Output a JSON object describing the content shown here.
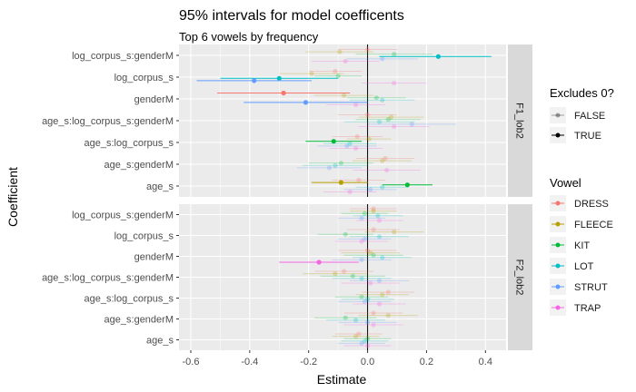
{
  "chart_data": {
    "type": "scatter",
    "title": "95% intervals for model coefficents",
    "subtitle": "Top 6 vowels by frequency",
    "xlabel": "Estimate",
    "ylabel": "Coefficient",
    "xlim": [
      -0.64,
      0.47
    ],
    "x_ticks": [
      "-0.6",
      "-0.4",
      "-0.2",
      "0.0",
      "0.2",
      "0.4"
    ],
    "x_tick_values": [
      -0.6,
      -0.4,
      -0.2,
      0.0,
      0.2,
      0.4
    ],
    "categories": [
      "log_corpus_s:genderM",
      "log_corpus_s",
      "genderM",
      "age_s:log_corpus_s:genderM",
      "age_s:log_corpus_s",
      "age_s:genderM",
      "age_s"
    ],
    "facets": [
      "F1_lob2",
      "F2_lob2"
    ],
    "vowels": [
      "DRESS",
      "FLEECE",
      "KIT",
      "LOT",
      "STRUT",
      "TRAP"
    ],
    "colors": {
      "DRESS": "#F8766D",
      "FLEECE": "#B79F00",
      "KIT": "#00BA38",
      "LOT": "#00BFC4",
      "STRUT": "#619CFF",
      "TRAP": "#F564E3",
      "panel_bg": "#EBEBEB",
      "grid": "#FFFFFF",
      "strip_bg": "#D9D9D9",
      "zero_line": "#000000"
    },
    "legend": {
      "position": "right",
      "excludes_title": "Excludes 0?",
      "excludes_items": [
        "FALSE",
        "TRUE"
      ],
      "vowel_title": "Vowel"
    },
    "grid": true,
    "panels": [
      {
        "facet": "F1_lob2",
        "points": [
          {
            "coef": "log_corpus_s:genderM",
            "vowel": "DRESS",
            "est": 0.0,
            "lo": -0.1,
            "hi": 0.1,
            "sig": false
          },
          {
            "coef": "log_corpus_s:genderM",
            "vowel": "FLEECE",
            "est": -0.095,
            "lo": -0.21,
            "hi": 0.02,
            "sig": false
          },
          {
            "coef": "log_corpus_s:genderM",
            "vowel": "KIT",
            "est": 0.09,
            "lo": -0.04,
            "hi": 0.22,
            "sig": false
          },
          {
            "coef": "log_corpus_s:genderM",
            "vowel": "LOT",
            "est": 0.24,
            "lo": 0.04,
            "hi": 0.42,
            "sig": true
          },
          {
            "coef": "log_corpus_s:genderM",
            "vowel": "STRUT",
            "est": 0.05,
            "lo": -0.07,
            "hi": 0.17,
            "sig": false
          },
          {
            "coef": "log_corpus_s:genderM",
            "vowel": "TRAP",
            "est": -0.075,
            "lo": -0.19,
            "hi": 0.04,
            "sig": false
          },
          {
            "coef": "log_corpus_s",
            "vowel": "DRESS",
            "est": -0.11,
            "lo": -0.2,
            "hi": -0.02,
            "sig": false
          },
          {
            "coef": "log_corpus_s",
            "vowel": "FLEECE",
            "est": -0.19,
            "lo": -0.3,
            "hi": -0.08,
            "sig": false
          },
          {
            "coef": "log_corpus_s",
            "vowel": "KIT",
            "est": -0.1,
            "lo": -0.18,
            "hi": -0.02,
            "sig": false
          },
          {
            "coef": "log_corpus_s",
            "vowel": "LOT",
            "est": -0.3,
            "lo": -0.5,
            "hi": -0.1,
            "sig": true
          },
          {
            "coef": "log_corpus_s",
            "vowel": "STRUT",
            "est": -0.385,
            "lo": -0.58,
            "hi": -0.19,
            "sig": true
          },
          {
            "coef": "log_corpus_s",
            "vowel": "TRAP",
            "est": 0.09,
            "lo": -0.02,
            "hi": 0.2,
            "sig": false
          },
          {
            "coef": "genderM",
            "vowel": "DRESS",
            "est": -0.285,
            "lo": -0.51,
            "hi": -0.06,
            "sig": true
          },
          {
            "coef": "genderM",
            "vowel": "FLEECE",
            "est": -0.08,
            "lo": -0.18,
            "hi": 0.02,
            "sig": false
          },
          {
            "coef": "genderM",
            "vowel": "KIT",
            "est": 0.03,
            "lo": -0.07,
            "hi": 0.13,
            "sig": false
          },
          {
            "coef": "genderM",
            "vowel": "LOT",
            "est": 0.05,
            "lo": -0.06,
            "hi": 0.16,
            "sig": false
          },
          {
            "coef": "genderM",
            "vowel": "STRUT",
            "est": -0.21,
            "lo": -0.42,
            "hi": 0.0,
            "sig": true
          },
          {
            "coef": "genderM",
            "vowel": "TRAP",
            "est": -0.04,
            "lo": -0.14,
            "hi": 0.06,
            "sig": false
          },
          {
            "coef": "age_s:log_corpus_s:genderM",
            "vowel": "DRESS",
            "est": 0.0,
            "lo": -0.1,
            "hi": 0.1,
            "sig": false
          },
          {
            "coef": "age_s:log_corpus_s:genderM",
            "vowel": "FLEECE",
            "est": 0.08,
            "lo": -0.03,
            "hi": 0.19,
            "sig": false
          },
          {
            "coef": "age_s:log_corpus_s:genderM",
            "vowel": "KIT",
            "est": 0.07,
            "lo": -0.04,
            "hi": 0.18,
            "sig": false
          },
          {
            "coef": "age_s:log_corpus_s:genderM",
            "vowel": "LOT",
            "est": 0.04,
            "lo": -0.08,
            "hi": 0.16,
            "sig": false
          },
          {
            "coef": "age_s:log_corpus_s:genderM",
            "vowel": "STRUT",
            "est": 0.15,
            "lo": 0.0,
            "hi": 0.3,
            "sig": false
          },
          {
            "coef": "age_s:log_corpus_s:genderM",
            "vowel": "TRAP",
            "est": 0.09,
            "lo": -0.03,
            "hi": 0.21,
            "sig": false
          },
          {
            "coef": "age_s:log_corpus_s",
            "vowel": "DRESS",
            "est": -0.035,
            "lo": -0.12,
            "hi": 0.05,
            "sig": false
          },
          {
            "coef": "age_s:log_corpus_s",
            "vowel": "FLEECE",
            "est": 0.005,
            "lo": -0.07,
            "hi": 0.08,
            "sig": false
          },
          {
            "coef": "age_s:log_corpus_s",
            "vowel": "KIT",
            "est": -0.115,
            "lo": -0.21,
            "hi": -0.02,
            "sig": true
          },
          {
            "coef": "age_s:log_corpus_s",
            "vowel": "LOT",
            "est": -0.06,
            "lo": -0.15,
            "hi": 0.03,
            "sig": false
          },
          {
            "coef": "age_s:log_corpus_s",
            "vowel": "STRUT",
            "est": -0.07,
            "lo": -0.17,
            "hi": 0.03,
            "sig": false
          },
          {
            "coef": "age_s:log_corpus_s",
            "vowel": "TRAP",
            "est": -0.04,
            "lo": -0.13,
            "hi": 0.05,
            "sig": false
          },
          {
            "coef": "age_s:genderM",
            "vowel": "DRESS",
            "est": 0.06,
            "lo": -0.04,
            "hi": 0.16,
            "sig": false
          },
          {
            "coef": "age_s:genderM",
            "vowel": "FLEECE",
            "est": 0.05,
            "lo": -0.05,
            "hi": 0.15,
            "sig": false
          },
          {
            "coef": "age_s:genderM",
            "vowel": "KIT",
            "est": -0.09,
            "lo": -0.2,
            "hi": 0.02,
            "sig": false
          },
          {
            "coef": "age_s:genderM",
            "vowel": "LOT",
            "est": -0.11,
            "lo": -0.22,
            "hi": 0.0,
            "sig": false
          },
          {
            "coef": "age_s:genderM",
            "vowel": "STRUT",
            "est": -0.13,
            "lo": -0.24,
            "hi": -0.02,
            "sig": false
          },
          {
            "coef": "age_s:genderM",
            "vowel": "TRAP",
            "est": 0.065,
            "lo": -0.05,
            "hi": 0.18,
            "sig": false
          },
          {
            "coef": "age_s",
            "vowel": "DRESS",
            "est": -0.03,
            "lo": -0.12,
            "hi": 0.06,
            "sig": false
          },
          {
            "coef": "age_s",
            "vowel": "FLEECE",
            "est": -0.09,
            "lo": -0.19,
            "hi": 0.0,
            "sig": true
          },
          {
            "coef": "age_s",
            "vowel": "KIT",
            "est": 0.135,
            "lo": 0.05,
            "hi": 0.22,
            "sig": true
          },
          {
            "coef": "age_s",
            "vowel": "LOT",
            "est": 0.05,
            "lo": -0.04,
            "hi": 0.14,
            "sig": false
          },
          {
            "coef": "age_s",
            "vowel": "STRUT",
            "est": 0.01,
            "lo": -0.08,
            "hi": 0.1,
            "sig": false
          },
          {
            "coef": "age_s",
            "vowel": "TRAP",
            "est": -0.06,
            "lo": -0.15,
            "hi": 0.03,
            "sig": false
          }
        ]
      },
      {
        "facet": "F2_lob2",
        "points": [
          {
            "coef": "log_corpus_s:genderM",
            "vowel": "DRESS",
            "est": 0.02,
            "lo": -0.06,
            "hi": 0.1,
            "sig": false
          },
          {
            "coef": "log_corpus_s:genderM",
            "vowel": "FLEECE",
            "est": 0.02,
            "lo": -0.06,
            "hi": 0.1,
            "sig": false
          },
          {
            "coef": "log_corpus_s:genderM",
            "vowel": "KIT",
            "est": -0.01,
            "lo": -0.09,
            "hi": 0.07,
            "sig": false
          },
          {
            "coef": "log_corpus_s:genderM",
            "vowel": "LOT",
            "est": 0.035,
            "lo": -0.05,
            "hi": 0.12,
            "sig": false
          },
          {
            "coef": "log_corpus_s:genderM",
            "vowel": "STRUT",
            "est": -0.02,
            "lo": -0.1,
            "hi": 0.06,
            "sig": false
          },
          {
            "coef": "log_corpus_s:genderM",
            "vowel": "TRAP",
            "est": 0.04,
            "lo": -0.04,
            "hi": 0.12,
            "sig": false
          },
          {
            "coef": "log_corpus_s",
            "vowel": "DRESS",
            "est": 0.02,
            "lo": -0.07,
            "hi": 0.11,
            "sig": false
          },
          {
            "coef": "log_corpus_s",
            "vowel": "FLEECE",
            "est": 0.09,
            "lo": -0.01,
            "hi": 0.19,
            "sig": false
          },
          {
            "coef": "log_corpus_s",
            "vowel": "KIT",
            "est": -0.075,
            "lo": -0.17,
            "hi": 0.02,
            "sig": false
          },
          {
            "coef": "log_corpus_s",
            "vowel": "LOT",
            "est": 0.04,
            "lo": -0.06,
            "hi": 0.14,
            "sig": false
          },
          {
            "coef": "log_corpus_s",
            "vowel": "STRUT",
            "est": -0.01,
            "lo": -0.1,
            "hi": 0.08,
            "sig": false
          },
          {
            "coef": "log_corpus_s",
            "vowel": "TRAP",
            "est": -0.02,
            "lo": -0.11,
            "hi": 0.07,
            "sig": false
          },
          {
            "coef": "genderM",
            "vowel": "DRESS",
            "est": 0.0,
            "lo": -0.1,
            "hi": 0.1,
            "sig": false
          },
          {
            "coef": "genderM",
            "vowel": "FLEECE",
            "est": 0.01,
            "lo": -0.09,
            "hi": 0.11,
            "sig": false
          },
          {
            "coef": "genderM",
            "vowel": "KIT",
            "est": 0.02,
            "lo": -0.08,
            "hi": 0.12,
            "sig": false
          },
          {
            "coef": "genderM",
            "vowel": "LOT",
            "est": 0.05,
            "lo": -0.05,
            "hi": 0.15,
            "sig": false
          },
          {
            "coef": "genderM",
            "vowel": "STRUT",
            "est": -0.02,
            "lo": -0.12,
            "hi": 0.08,
            "sig": false
          },
          {
            "coef": "genderM",
            "vowel": "TRAP",
            "est": -0.165,
            "lo": -0.3,
            "hi": -0.03,
            "sig": true
          },
          {
            "coef": "age_s:log_corpus_s:genderM",
            "vowel": "DRESS",
            "est": -0.08,
            "lo": -0.18,
            "hi": 0.02,
            "sig": false
          },
          {
            "coef": "age_s:log_corpus_s:genderM",
            "vowel": "FLEECE",
            "est": -0.11,
            "lo": -0.22,
            "hi": 0.0,
            "sig": false
          },
          {
            "coef": "age_s:log_corpus_s:genderM",
            "vowel": "KIT",
            "est": -0.05,
            "lo": -0.16,
            "hi": 0.06,
            "sig": false
          },
          {
            "coef": "age_s:log_corpus_s:genderM",
            "vowel": "LOT",
            "est": -0.02,
            "lo": -0.12,
            "hi": 0.08,
            "sig": false
          },
          {
            "coef": "age_s:log_corpus_s:genderM",
            "vowel": "STRUT",
            "est": 0.04,
            "lo": -0.06,
            "hi": 0.14,
            "sig": false
          },
          {
            "coef": "age_s:log_corpus_s:genderM",
            "vowel": "TRAP",
            "est": 0.01,
            "lo": -0.09,
            "hi": 0.11,
            "sig": false
          },
          {
            "coef": "age_s:log_corpus_s",
            "vowel": "DRESS",
            "est": 0.07,
            "lo": -0.02,
            "hi": 0.16,
            "sig": false
          },
          {
            "coef": "age_s:log_corpus_s",
            "vowel": "FLEECE",
            "est": 0.05,
            "lo": -0.04,
            "hi": 0.14,
            "sig": false
          },
          {
            "coef": "age_s:log_corpus_s",
            "vowel": "KIT",
            "est": -0.02,
            "lo": -0.11,
            "hi": 0.07,
            "sig": false
          },
          {
            "coef": "age_s:log_corpus_s",
            "vowel": "LOT",
            "est": 0.0,
            "lo": -0.09,
            "hi": 0.09,
            "sig": false
          },
          {
            "coef": "age_s:log_corpus_s",
            "vowel": "STRUT",
            "est": -0.01,
            "lo": -0.1,
            "hi": 0.08,
            "sig": false
          },
          {
            "coef": "age_s:log_corpus_s",
            "vowel": "TRAP",
            "est": 0.04,
            "lo": -0.05,
            "hi": 0.13,
            "sig": false
          },
          {
            "coef": "age_s:genderM",
            "vowel": "DRESS",
            "est": 0.02,
            "lo": -0.08,
            "hi": 0.12,
            "sig": false
          },
          {
            "coef": "age_s:genderM",
            "vowel": "FLEECE",
            "est": 0.07,
            "lo": -0.03,
            "hi": 0.17,
            "sig": false
          },
          {
            "coef": "age_s:genderM",
            "vowel": "KIT",
            "est": -0.075,
            "lo": -0.18,
            "hi": 0.03,
            "sig": false
          },
          {
            "coef": "age_s:genderM",
            "vowel": "LOT",
            "est": -0.04,
            "lo": -0.14,
            "hi": 0.06,
            "sig": false
          },
          {
            "coef": "age_s:genderM",
            "vowel": "STRUT",
            "est": 0.0,
            "lo": -0.1,
            "hi": 0.1,
            "sig": false
          },
          {
            "coef": "age_s:genderM",
            "vowel": "TRAP",
            "est": 0.02,
            "lo": -0.08,
            "hi": 0.12,
            "sig": false
          },
          {
            "coef": "age_s",
            "vowel": "DRESS",
            "est": -0.03,
            "lo": -0.11,
            "hi": 0.05,
            "sig": false
          },
          {
            "coef": "age_s",
            "vowel": "FLEECE",
            "est": -0.04,
            "lo": -0.12,
            "hi": 0.04,
            "sig": false
          },
          {
            "coef": "age_s",
            "vowel": "KIT",
            "est": 0.0,
            "lo": -0.08,
            "hi": 0.08,
            "sig": false
          },
          {
            "coef": "age_s",
            "vowel": "LOT",
            "est": -0.01,
            "lo": -0.09,
            "hi": 0.07,
            "sig": false
          },
          {
            "coef": "age_s",
            "vowel": "STRUT",
            "est": -0.02,
            "lo": -0.1,
            "hi": 0.06,
            "sig": false
          },
          {
            "coef": "age_s",
            "vowel": "TRAP",
            "est": 0.0,
            "lo": -0.08,
            "hi": 0.08,
            "sig": false
          }
        ]
      }
    ]
  }
}
